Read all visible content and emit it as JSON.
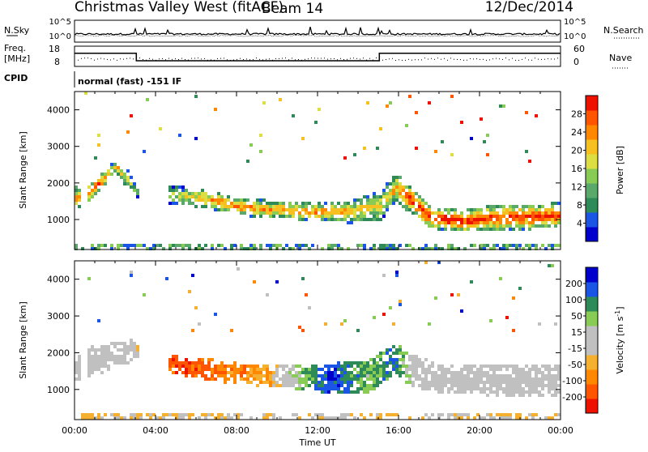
{
  "header": {
    "station": "Christmas Valley West (fitACF)",
    "beam": "Beam 14",
    "date": "12/Dec/2014"
  },
  "nsky_panel": {
    "left_label": "N.Sky",
    "right_label": "N.Search",
    "left_ticks": [
      "10^5",
      "10^0"
    ],
    "right_ticks": [
      "10^5",
      "10^0"
    ]
  },
  "freq_panel": {
    "left_label_1": "Freq.",
    "left_label_2": "[MHz]",
    "right_label": "Nave",
    "left_ticks": [
      "18",
      "8"
    ],
    "right_ticks": [
      "60",
      "0"
    ],
    "freq_steps": [
      {
        "start_h": 0,
        "end_h": 3.05,
        "mhz": 14.5
      },
      {
        "start_h": 3.05,
        "end_h": 15.05,
        "mhz": 10.8
      },
      {
        "start_h": 15.05,
        "end_h": 24,
        "mhz": 14.5
      }
    ]
  },
  "cpid": {
    "label": "CPID",
    "text": "normal (fast) -151 IF"
  },
  "chart_data": [
    {
      "type": "heatmap",
      "parameter": "power",
      "ylabel": "Slant Range [km]",
      "xlabel": "",
      "ylim": [
        180,
        4500
      ],
      "xlim_hours": [
        0,
        24
      ],
      "y_ticks": [
        "4000",
        "3000",
        "2000",
        "1000"
      ],
      "colorbar": {
        "label": "Power [dB]",
        "ticks": [
          "28",
          "24",
          "20",
          "16",
          "12",
          "8",
          "4"
        ],
        "range": [
          0,
          32
        ],
        "colors": [
          "#0000cc",
          "#1a55e6",
          "#2e8b57",
          "#5aa86a",
          "#88cc55",
          "#dddd44",
          "#f5c020",
          "#ff8800",
          "#ff5500",
          "#ee1100"
        ]
      },
      "echo_bands": [
        {
          "t": 0.0,
          "center_km": 1600,
          "width_km": 700,
          "level": 0.8
        },
        {
          "t": 0.5,
          "center_km": 1700,
          "width_km": 500,
          "level": 0.95
        },
        {
          "t": 1.5,
          "center_km": 2200,
          "width_km": 400,
          "level": 0.85
        },
        {
          "t": 2.0,
          "center_km": 2500,
          "width_km": 400,
          "level": 0.7
        },
        {
          "t": 2.6,
          "center_km": 2100,
          "width_km": 500,
          "level": 0.6
        },
        {
          "t": 3.0,
          "center_km": 1800,
          "width_km": 300,
          "level": 0.4
        },
        {
          "t": 5.0,
          "center_km": 1700,
          "width_km": 500,
          "level": 0.5
        },
        {
          "t": 6.5,
          "center_km": 1600,
          "width_km": 500,
          "level": 0.75
        },
        {
          "t": 8.0,
          "center_km": 1400,
          "width_km": 500,
          "level": 0.8
        },
        {
          "t": 10.0,
          "center_km": 1300,
          "width_km": 500,
          "level": 0.75
        },
        {
          "t": 12.0,
          "center_km": 1250,
          "width_km": 500,
          "level": 0.8
        },
        {
          "t": 13.5,
          "center_km": 1250,
          "width_km": 600,
          "level": 0.7
        },
        {
          "t": 15.0,
          "center_km": 1400,
          "width_km": 800,
          "level": 0.6
        },
        {
          "t": 15.8,
          "center_km": 1900,
          "width_km": 800,
          "level": 0.7
        },
        {
          "t": 16.3,
          "center_km": 1700,
          "width_km": 800,
          "level": 0.95
        },
        {
          "t": 17.5,
          "center_km": 1100,
          "width_km": 600,
          "level": 1.0
        },
        {
          "t": 19.0,
          "center_km": 1000,
          "width_km": 600,
          "level": 1.0
        },
        {
          "t": 21.0,
          "center_km": 1100,
          "width_km": 700,
          "level": 0.95
        },
        {
          "t": 24.0,
          "center_km": 1150,
          "width_km": 700,
          "level": 0.95
        }
      ]
    },
    {
      "type": "heatmap",
      "parameter": "velocity",
      "ylabel": "Slant Range [km]",
      "xlabel": "Time UT",
      "ylim": [
        180,
        4500
      ],
      "xlim_hours": [
        0,
        24
      ],
      "x_ticks": [
        "00:00",
        "04:00",
        "08:00",
        "12:00",
        "16:00",
        "20:00",
        "00:00"
      ],
      "y_ticks": [
        "4000",
        "3000",
        "2000",
        "1000"
      ],
      "colorbar": {
        "label": "Velocity [m s^-1]",
        "ticks": [
          "200",
          "100",
          "50",
          "15",
          "-15",
          "-50",
          "-100",
          "-200"
        ],
        "range": [
          -250,
          250
        ],
        "colors": [
          "#ee1100",
          "#ff5500",
          "#ff8800",
          "#f5b030",
          "#c0c0c0",
          "#c0c0c0",
          "#88cc55",
          "#2e8b57",
          "#1a55e6",
          "#0000cc"
        ]
      },
      "echo_bands": [
        {
          "t": 0.0,
          "center_km": 1700,
          "width_km": 900,
          "vel": 0
        },
        {
          "t": 2.8,
          "center_km": 2100,
          "width_km": 600,
          "vel": 0
        },
        {
          "t": 5.0,
          "center_km": 1700,
          "width_km": 500,
          "vel": -200
        },
        {
          "t": 7.0,
          "center_km": 1550,
          "width_km": 600,
          "vel": -150
        },
        {
          "t": 9.5,
          "center_km": 1400,
          "width_km": 600,
          "vel": -90
        },
        {
          "t": 11.0,
          "center_km": 1400,
          "width_km": 700,
          "vel": 60
        },
        {
          "t": 12.5,
          "center_km": 1350,
          "width_km": 800,
          "vel": 200
        },
        {
          "t": 14.5,
          "center_km": 1400,
          "width_km": 900,
          "vel": 80
        },
        {
          "t": 15.8,
          "center_km": 1900,
          "width_km": 800,
          "vel": 150
        },
        {
          "t": 16.4,
          "center_km": 1600,
          "width_km": 900,
          "vel": 30
        },
        {
          "t": 18.0,
          "center_km": 1300,
          "width_km": 800,
          "vel": 0
        },
        {
          "t": 24.0,
          "center_km": 1300,
          "width_km": 900,
          "vel": 0
        }
      ]
    }
  ]
}
